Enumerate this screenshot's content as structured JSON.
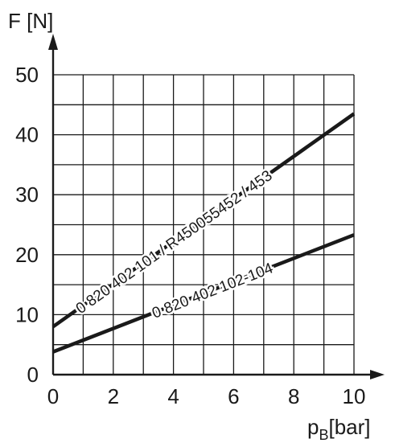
{
  "chart_data": {
    "type": "line",
    "ylabel": "F [N]",
    "xlabel_main": "p",
    "xlabel_sub": "B",
    "xlabel_unit": "[bar]",
    "xlim": [
      0,
      10
    ],
    "ylim": [
      0,
      50
    ],
    "x_ticks": [
      "0",
      "2",
      "4",
      "6",
      "8",
      "10"
    ],
    "y_ticks": [
      "0",
      "10",
      "20",
      "30",
      "40",
      "50"
    ],
    "grid": true,
    "series": [
      {
        "name": "0 820 402 101 / R450055452 / 453",
        "x": [
          0,
          10
        ],
        "y": [
          8,
          43.5
        ]
      },
      {
        "name": "0 820 402 102-104",
        "x": [
          0,
          10
        ],
        "y": [
          3.8,
          23.3
        ]
      }
    ]
  }
}
